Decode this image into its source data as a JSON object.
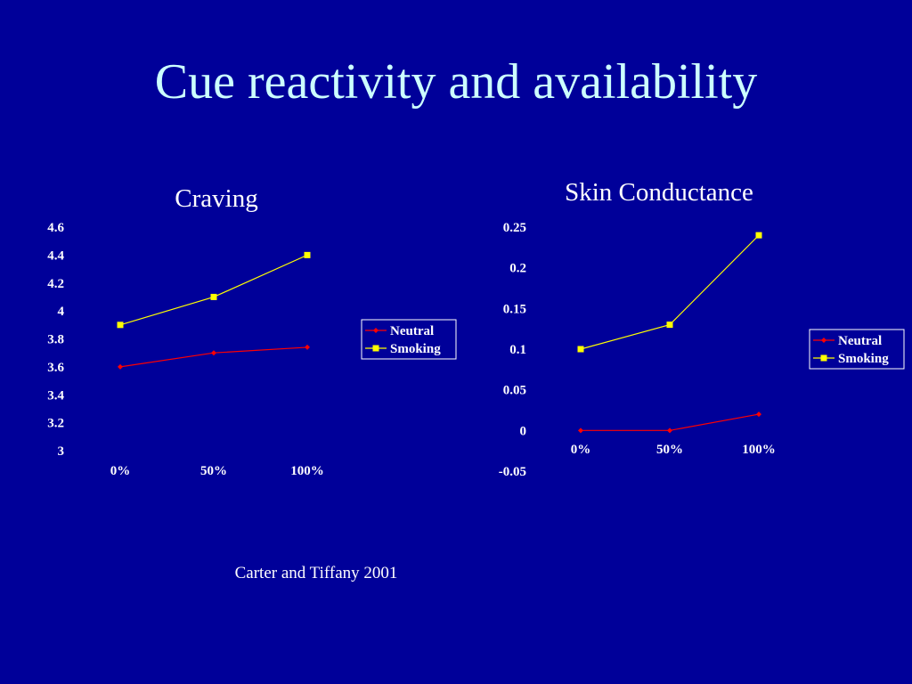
{
  "slide": {
    "title": "Cue reactivity and availability",
    "citation": "Carter and Tiffany 2001"
  },
  "colors": {
    "background": "#000099",
    "title": "#ccffff",
    "text": "#ffffff",
    "neutral": "#ff0000",
    "smoking": "#ffff00"
  },
  "chart_data": [
    {
      "type": "line",
      "title": "Craving",
      "categories": [
        "0%",
        "50%",
        "100%"
      ],
      "series": [
        {
          "name": "Neutral",
          "values": [
            3.6,
            3.7,
            3.74
          ]
        },
        {
          "name": "Smoking",
          "values": [
            3.9,
            4.1,
            4.4
          ]
        }
      ],
      "yticks": [
        "4.6",
        "4.4",
        "4.2",
        "4",
        "3.8",
        "3.6",
        "3.4",
        "3.2",
        "3"
      ],
      "ylim": [
        3,
        4.6
      ],
      "grid": false,
      "legend": "right"
    },
    {
      "type": "line",
      "title": "Skin Conductance",
      "categories": [
        "0%",
        "50%",
        "100%"
      ],
      "series": [
        {
          "name": "Neutral",
          "values": [
            0,
            0,
            0.02
          ]
        },
        {
          "name": "Smoking",
          "values": [
            0.1,
            0.13,
            0.24
          ]
        }
      ],
      "yticks": [
        "0.25",
        "0.2",
        "0.15",
        "0.1",
        "0.05",
        "0",
        "-0.05"
      ],
      "ylim": [
        -0.05,
        0.25
      ],
      "grid": false,
      "legend": "right"
    }
  ]
}
